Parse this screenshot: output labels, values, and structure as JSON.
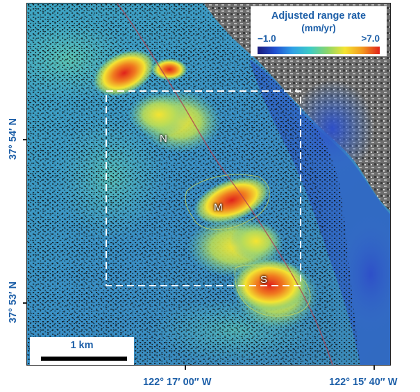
{
  "legend": {
    "title": "Adjusted range rate",
    "unit": "(mm/yr)",
    "min_label": "−1.0",
    "max_label": ">7.0",
    "colors": [
      "#1a1a7a",
      "#1f4fd0",
      "#2fa0e6",
      "#3ccbc7",
      "#8bd56a",
      "#f4e432",
      "#f39a1e",
      "#e0221c"
    ]
  },
  "scale_bar": {
    "label": "1 km"
  },
  "latitude_labels": {
    "north": "37° 54′ N",
    "south": "37° 53′ N"
  },
  "longitude_labels": {
    "west": "122° 17′ 00″ W",
    "east": "122° 15′ 40″ W"
  },
  "site_labels": {
    "north": "N",
    "middle": "M",
    "south": "S"
  },
  "colors": {
    "label_blue": "#1d5fa8",
    "base_cyan": "#3a9fc8",
    "hillside": "#7a7a7a",
    "hotspot_red": "#e0221c",
    "hotspot_yellow": "#f4e432",
    "dashed_box": "#ffffff"
  }
}
